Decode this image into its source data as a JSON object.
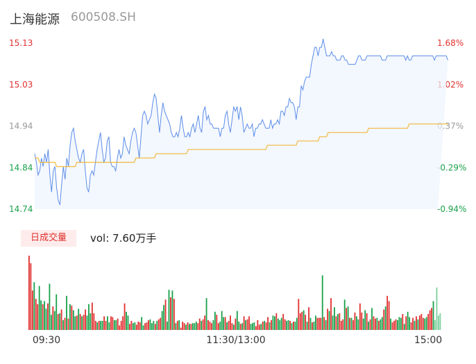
{
  "header": {
    "name": "上海能源",
    "code": "600508.SH"
  },
  "volume_label": {
    "badge": "日成交量",
    "text": "vol: 7.60万手"
  },
  "colors": {
    "price_line": "#5b8de8",
    "avg_line": "#f0b93a",
    "up": "#e0302f",
    "down": "#1aa14a",
    "neutral": "#999999"
  },
  "chart_data": [
    {
      "type": "line",
      "title": "",
      "y_left_ticks": [
        "15.13",
        "15.03",
        "14.94",
        "14.84",
        "14.74"
      ],
      "y_right_ticks": [
        "1.68%",
        "1.02%",
        "0.37%",
        "-0.29%",
        "-0.94%"
      ],
      "ylim": [
        14.74,
        15.13
      ],
      "x_ticks": [
        "09:30",
        "11:30/13:00",
        "15:00"
      ],
      "n_points": 240,
      "series": [
        {
          "values": [
            14.87,
            14.85,
            14.82,
            14.83,
            14.86,
            14.84,
            14.87,
            14.85,
            14.88,
            14.82,
            14.78,
            14.83,
            14.84,
            14.79,
            14.76,
            14.75,
            14.8,
            14.84,
            14.81,
            14.86,
            14.84,
            14.89,
            14.92,
            14.93,
            14.9,
            14.88,
            14.86,
            14.85,
            14.87,
            14.88,
            14.83,
            14.79,
            14.78,
            14.82,
            14.83,
            14.82,
            14.85,
            14.88,
            14.9,
            14.92,
            14.88,
            14.85,
            14.86,
            14.9,
            14.91,
            14.85,
            14.84,
            14.84,
            14.83,
            14.86,
            14.88,
            14.86,
            14.87,
            14.91,
            14.89,
            14.88,
            14.87,
            14.9,
            14.92,
            14.93,
            14.92,
            14.89,
            14.86,
            14.91,
            14.96,
            14.97,
            14.96,
            14.94,
            14.95,
            14.96,
            14.99,
            15.01,
            15.0,
            14.96,
            14.92,
            14.96,
            14.99,
            14.97,
            14.96,
            14.95,
            14.94,
            14.92,
            14.91,
            14.91,
            14.92,
            14.91,
            14.93,
            14.96,
            14.93,
            14.91,
            14.91,
            14.92,
            14.91,
            14.93,
            14.94,
            14.92,
            14.94,
            14.96,
            14.93,
            14.92,
            14.97,
            14.98,
            14.95,
            14.96,
            14.94,
            14.94,
            14.93,
            14.93,
            14.93,
            14.93,
            14.91,
            14.93,
            14.93,
            14.96,
            14.97,
            14.94,
            14.92,
            14.95,
            14.98,
            14.97,
            14.98,
            14.95,
            14.98,
            14.96,
            14.92,
            14.93,
            14.94,
            14.93,
            14.93,
            14.94,
            14.91,
            14.93,
            14.93,
            14.94,
            14.94,
            14.95,
            14.94,
            14.93,
            14.93,
            14.93,
            14.95,
            14.93,
            14.94,
            14.94,
            14.95,
            14.94,
            14.97,
            14.97,
            14.96,
            14.98,
            14.98,
            15.0,
            14.99,
            14.99,
            14.98,
            14.95,
            14.98,
            14.98,
            15.03,
            15.02,
            15.04,
            15.05,
            15.05,
            15.05,
            15.08,
            15.1,
            15.12,
            15.12,
            15.1,
            15.12,
            15.12,
            15.14,
            15.12,
            15.1,
            15.1,
            15.1,
            15.11,
            15.1,
            15.1,
            15.09,
            15.09,
            15.09,
            15.1,
            15.1,
            15.09,
            15.09,
            15.08,
            15.08,
            15.08,
            15.08,
            15.08,
            15.09,
            15.1,
            15.1,
            15.09,
            15.09,
            15.09,
            15.1,
            15.1,
            15.1,
            15.1,
            15.1,
            15.1,
            15.1,
            15.1,
            15.1,
            15.09,
            15.09,
            15.09,
            15.1,
            15.1,
            15.1,
            15.1,
            15.1,
            15.1,
            15.1,
            15.1,
            15.1,
            15.1,
            15.1,
            15.09,
            15.1,
            15.09,
            15.09,
            15.1,
            15.1,
            15.1,
            15.1,
            15.1,
            15.1,
            15.1,
            15.1,
            15.1,
            15.1,
            15.1,
            15.1,
            15.1,
            15.09,
            15.1,
            15.1,
            15.1,
            15.1,
            15.1,
            15.1,
            15.1,
            15.09
          ]
        },
        {
          "values": [
            14.86,
            14.86,
            14.86,
            14.85,
            14.85,
            14.85,
            14.85,
            14.85,
            14.85,
            14.85,
            14.85,
            14.85,
            14.85,
            14.84,
            14.84,
            14.84,
            14.84,
            14.84,
            14.84,
            14.84,
            14.84,
            14.84,
            14.84,
            14.84,
            14.84,
            14.85,
            14.85,
            14.85,
            14.85,
            14.85,
            14.85,
            14.85,
            14.85,
            14.85,
            14.85,
            14.85,
            14.85,
            14.85,
            14.85,
            14.85,
            14.85,
            14.85,
            14.85,
            14.85,
            14.85,
            14.85,
            14.85,
            14.85,
            14.85,
            14.85,
            14.85,
            14.85,
            14.85,
            14.85,
            14.85,
            14.85,
            14.85,
            14.85,
            14.85,
            14.85,
            14.86,
            14.86,
            14.86,
            14.86,
            14.86,
            14.86,
            14.86,
            14.86,
            14.86,
            14.86,
            14.86,
            14.86,
            14.87,
            14.87,
            14.87,
            14.87,
            14.87,
            14.87,
            14.87,
            14.87,
            14.87,
            14.87,
            14.87,
            14.87,
            14.87,
            14.87,
            14.87,
            14.87,
            14.87,
            14.87,
            14.87,
            14.88,
            14.88,
            14.88,
            14.88,
            14.88,
            14.88,
            14.88,
            14.88,
            14.88,
            14.88,
            14.88,
            14.88,
            14.88,
            14.88,
            14.88,
            14.88,
            14.88,
            14.88,
            14.88,
            14.88,
            14.88,
            14.88,
            14.88,
            14.88,
            14.88,
            14.88,
            14.88,
            14.88,
            14.88,
            14.88,
            14.88,
            14.88,
            14.88,
            14.88,
            14.88,
            14.88,
            14.88,
            14.88,
            14.88,
            14.88,
            14.88,
            14.88,
            14.88,
            14.88,
            14.88,
            14.88,
            14.88,
            14.89,
            14.89,
            14.89,
            14.89,
            14.89,
            14.89,
            14.89,
            14.89,
            14.89,
            14.89,
            14.89,
            14.89,
            14.89,
            14.89,
            14.89,
            14.89,
            14.89,
            14.89,
            14.9,
            14.9,
            14.9,
            14.9,
            14.9,
            14.9,
            14.9,
            14.9,
            14.9,
            14.9,
            14.9,
            14.9,
            14.9,
            14.91,
            14.91,
            14.91,
            14.91,
            14.91,
            14.92,
            14.92,
            14.92,
            14.92,
            14.92,
            14.92,
            14.92,
            14.92,
            14.92,
            14.92,
            14.92,
            14.92,
            14.92,
            14.92,
            14.92,
            14.92,
            14.92,
            14.92,
            14.92,
            14.92,
            14.92,
            14.92,
            14.92,
            14.92,
            14.93,
            14.93,
            14.93,
            14.93,
            14.93,
            14.93,
            14.93,
            14.93,
            14.93,
            14.93,
            14.93,
            14.93,
            14.93,
            14.93,
            14.93,
            14.93,
            14.93,
            14.93,
            14.93,
            14.93,
            14.93,
            14.93,
            14.93,
            14.93,
            14.94,
            14.94,
            14.94,
            14.94,
            14.94,
            14.94,
            14.94,
            14.94,
            14.94,
            14.94,
            14.94,
            14.94,
            14.94,
            14.94,
            14.94,
            14.94,
            14.94,
            14.94,
            14.94,
            14.94,
            14.94,
            14.94,
            14.94,
            14.94
          ]
        }
      ]
    },
    {
      "type": "bar",
      "title": "",
      "values": [
        98,
        88,
        52,
        63,
        41,
        34,
        58,
        39,
        34,
        38,
        28,
        35,
        61,
        20,
        31,
        25,
        47,
        21,
        22,
        27,
        13,
        16,
        45,
        15,
        34,
        32,
        26,
        18,
        19,
        28,
        21,
        18,
        20,
        27,
        19,
        34,
        22,
        36,
        22,
        12,
        10,
        12,
        12,
        12,
        18,
        12,
        18,
        10,
        18,
        17,
        13,
        13,
        15,
        6,
        12,
        18,
        35,
        24,
        19,
        8,
        12,
        9,
        10,
        7,
        11,
        10,
        17,
        6,
        9,
        10,
        13,
        14,
        9,
        12,
        8,
        12,
        14,
        16,
        25,
        33,
        40,
        11,
        53,
        43,
        52,
        41,
        9,
        12,
        13,
        3,
        11,
        9,
        7,
        10,
        8,
        8,
        9,
        9,
        11,
        9,
        15,
        12,
        14,
        19,
        42,
        13,
        11,
        9,
        13,
        24,
        20,
        9,
        11,
        25,
        17,
        17,
        10,
        12,
        19,
        9,
        7,
        15,
        25,
        11,
        8,
        9,
        18,
        13,
        14,
        18,
        8,
        9,
        10,
        5,
        13,
        7,
        8,
        11,
        12,
        10,
        17,
        10,
        13,
        19,
        18,
        22,
        15,
        13,
        16,
        21,
        14,
        12,
        13,
        12,
        9,
        11,
        11,
        16,
        41,
        22,
        24,
        26,
        20,
        11,
        30,
        16,
        10,
        11,
        19,
        16,
        16,
        16,
        72,
        17,
        13,
        28,
        25,
        42,
        19,
        30,
        18,
        21,
        22,
        12,
        14,
        40,
        29,
        31,
        16,
        16,
        13,
        23,
        18,
        14,
        35,
        23,
        15,
        26,
        22,
        11,
        14,
        29,
        18,
        15,
        16,
        12,
        14,
        17,
        27,
        31,
        45,
        38,
        15,
        10,
        12,
        14,
        13,
        17,
        16,
        21,
        8,
        18,
        24,
        17,
        10,
        16,
        12,
        18,
        14,
        19,
        21,
        16,
        15,
        17,
        21,
        26,
        29,
        38,
        13,
        56,
        19,
        22
      ],
      "colors": [
        "r",
        "r",
        "r",
        "g",
        "r",
        "r",
        "g",
        "g",
        "r",
        "g",
        "g",
        "r",
        "g",
        "g",
        "r",
        "g",
        "g",
        "r",
        "g",
        "r",
        "g",
        "r",
        "g",
        "r",
        "g",
        "r",
        "g",
        "g",
        "r",
        "g",
        "r",
        "g",
        "r",
        "r",
        "g",
        "g",
        "g",
        "r",
        "r",
        "r",
        "g",
        "r",
        "g",
        "g",
        "r",
        "r",
        "g",
        "g",
        "r",
        "r",
        "g",
        "g",
        "r",
        "r",
        "r",
        "r",
        "r",
        "g",
        "g",
        "r",
        "r",
        "g",
        "g",
        "r",
        "r",
        "r",
        "g",
        "g",
        "r",
        "r",
        "r",
        "g",
        "g",
        "g",
        "r",
        "g",
        "r",
        "r",
        "g",
        "g",
        "r",
        "g",
        "g",
        "r",
        "g",
        "r",
        "g",
        "r",
        "g",
        "r",
        "r",
        "r",
        "g",
        "r",
        "g",
        "r",
        "g",
        "g",
        "g",
        "r",
        "r",
        "g",
        "r",
        "r",
        "g",
        "r",
        "r",
        "r",
        "g",
        "g",
        "r",
        "r",
        "g",
        "g",
        "g",
        "r",
        "g",
        "r",
        "r",
        "r",
        "g",
        "r",
        "g",
        "g",
        "r",
        "g",
        "r",
        "g",
        "r",
        "r",
        "g",
        "g",
        "g",
        "r",
        "r",
        "r",
        "g",
        "r",
        "g",
        "r",
        "r",
        "g",
        "r",
        "g",
        "g",
        "r",
        "g",
        "g",
        "g",
        "r",
        "r",
        "g",
        "g",
        "r",
        "g",
        "r",
        "g",
        "g",
        "r",
        "r",
        "r",
        "g",
        "r",
        "g",
        "r",
        "g",
        "r",
        "g",
        "g",
        "r",
        "r",
        "r",
        "g",
        "r",
        "g",
        "r",
        "g",
        "r",
        "g",
        "g",
        "r",
        "g",
        "r",
        "r",
        "r",
        "g",
        "r",
        "g",
        "r",
        "g",
        "r",
        "r",
        "g",
        "g",
        "r",
        "r",
        "g",
        "g",
        "r",
        "g",
        "r",
        "g",
        "r",
        "r",
        "g",
        "r",
        "g",
        "g",
        "r",
        "g",
        "r",
        "r",
        "g",
        "r",
        "r",
        "r",
        "g",
        "g",
        "g",
        "r",
        "g",
        "r",
        "g",
        "g",
        "r",
        "r",
        "g",
        "r",
        "g",
        "r",
        "r",
        "r",
        "g",
        "g",
        "r",
        "r",
        "r",
        "g",
        "n"
      ]
    }
  ]
}
